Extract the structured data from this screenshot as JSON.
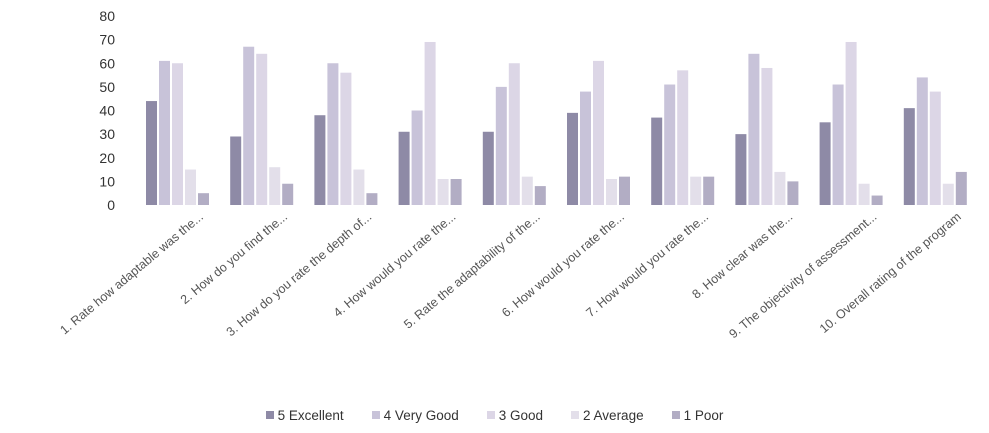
{
  "chart_data": {
    "type": "bar",
    "categories": [
      "1. Rate how adaptable was the...",
      "2. How do you find the...",
      "3. How do you rate the depth of...",
      "4. How would you rate the...",
      "5. Rate the adaptability of the...",
      "6. How would you rate the...",
      "7. How would you rate the...",
      "8. How clear was the...",
      "9. The objectivity of assessment...",
      "10. Overall rating of the program"
    ],
    "series": [
      {
        "name": "5 Excellent",
        "color": "#8e8aa6",
        "values": [
          44,
          29,
          38,
          31,
          31,
          39,
          37,
          30,
          35,
          41
        ]
      },
      {
        "name": "4 Very Good",
        "color": "#c8c3d9",
        "values": [
          61,
          67,
          60,
          40,
          50,
          48,
          51,
          64,
          51,
          54
        ]
      },
      {
        "name": "3 Good",
        "color": "#dcd6e6",
        "values": [
          60,
          64,
          56,
          69,
          60,
          61,
          57,
          58,
          69,
          48
        ]
      },
      {
        "name": "2 Average",
        "color": "#e3dfea",
        "values": [
          15,
          16,
          15,
          11,
          12,
          11,
          12,
          14,
          9,
          9
        ]
      },
      {
        "name": "1 Poor",
        "color": "#b2adc4",
        "values": [
          5,
          9,
          5,
          11,
          8,
          12,
          12,
          10,
          4,
          14
        ]
      }
    ],
    "yticks": [
      0,
      10,
      20,
      30,
      40,
      50,
      60,
      70,
      80
    ],
    "ylim": [
      0,
      80
    ],
    "legend_position": "bottom",
    "grid": false
  }
}
